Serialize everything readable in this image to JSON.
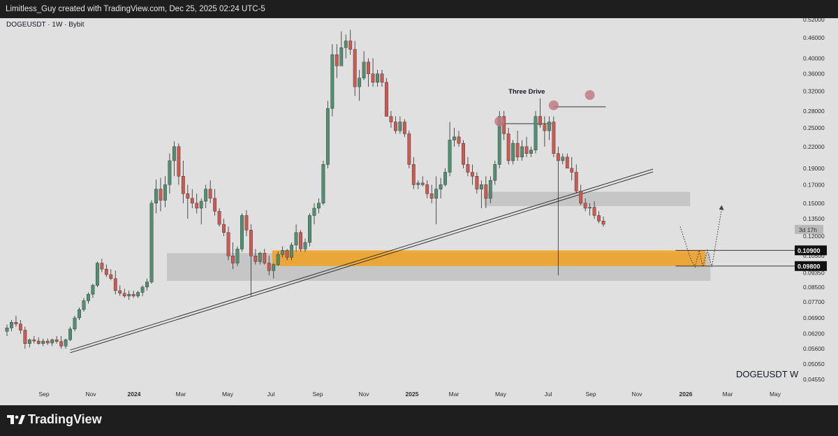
{
  "header": {
    "credit": "Limitless_Guy created with TradingView.com, Dec 25, 2025 02:24 UTC-5"
  },
  "chart": {
    "symbol_label": "DOGEUSDT · 1W · Bybit",
    "watermark": "DOGEUSDT   W",
    "countdown": "3d 17h",
    "annotation": "Three Drive",
    "price_tags": [
      "0.10900",
      "0.09800"
    ]
  },
  "footer": {
    "brand": "TradingView"
  },
  "colors": {
    "up": "#4f8f72",
    "down": "#d0584f",
    "zone": "#f0a020",
    "marker": "#c07a84"
  },
  "chart_data": {
    "type": "candlestick",
    "title": "DOGEUSDT · 1W · Bybit",
    "scale": "log",
    "y_ticks": [
      "0.52000",
      "0.46000",
      "0.40000",
      "0.36000",
      "0.32000",
      "0.28000",
      "0.25000",
      "0.22000",
      "0.19000",
      "0.17000",
      "0.15000",
      "0.13500",
      "0.12000",
      "0.10500",
      "0.09350",
      "0.08500",
      "0.07700",
      "0.06900",
      "0.06200",
      "0.05600",
      "0.05050",
      "0.04550"
    ],
    "x_ticks": [
      "Sep",
      "Nov",
      "2024",
      "Mar",
      "May",
      "Jul",
      "Sep",
      "Nov",
      "2025",
      "Mar",
      "May",
      "Jul",
      "Sep",
      "Nov",
      "2026",
      "Mar",
      "May"
    ],
    "ohlc_weekly": [
      [
        0.063,
        0.066,
        0.061,
        0.0645
      ],
      [
        0.0645,
        0.068,
        0.063,
        0.067
      ],
      [
        0.067,
        0.07,
        0.065,
        0.0662
      ],
      [
        0.0662,
        0.068,
        0.062,
        0.0635
      ],
      [
        0.0635,
        0.065,
        0.056,
        0.058
      ],
      [
        0.058,
        0.06,
        0.0565,
        0.0595
      ],
      [
        0.0595,
        0.061,
        0.058,
        0.059
      ],
      [
        0.059,
        0.0605,
        0.0575,
        0.058
      ],
      [
        0.058,
        0.06,
        0.057,
        0.059
      ],
      [
        0.059,
        0.06,
        0.0575,
        0.0582
      ],
      [
        0.0582,
        0.06,
        0.057,
        0.0595
      ],
      [
        0.0595,
        0.061,
        0.058,
        0.0588
      ],
      [
        0.0588,
        0.061,
        0.056,
        0.057
      ],
      [
        0.057,
        0.06,
        0.056,
        0.0595
      ],
      [
        0.0595,
        0.065,
        0.059,
        0.064
      ],
      [
        0.064,
        0.07,
        0.063,
        0.069
      ],
      [
        0.069,
        0.074,
        0.068,
        0.073
      ],
      [
        0.073,
        0.079,
        0.072,
        0.0775
      ],
      [
        0.0775,
        0.082,
        0.076,
        0.081
      ],
      [
        0.081,
        0.087,
        0.079,
        0.086
      ],
      [
        0.086,
        0.101,
        0.085,
        0.1
      ],
      [
        0.1,
        0.103,
        0.094,
        0.096
      ],
      [
        0.096,
        0.099,
        0.091,
        0.0925
      ],
      [
        0.0925,
        0.096,
        0.089,
        0.09
      ],
      [
        0.09,
        0.095,
        0.081,
        0.083
      ],
      [
        0.083,
        0.086,
        0.08,
        0.0815
      ],
      [
        0.0815,
        0.084,
        0.079,
        0.08
      ],
      [
        0.08,
        0.083,
        0.078,
        0.081
      ],
      [
        0.081,
        0.083,
        0.079,
        0.08
      ],
      [
        0.08,
        0.083,
        0.079,
        0.082
      ],
      [
        0.082,
        0.086,
        0.08,
        0.085
      ],
      [
        0.085,
        0.09,
        0.083,
        0.088
      ],
      [
        0.088,
        0.153,
        0.087,
        0.15
      ],
      [
        0.15,
        0.176,
        0.14,
        0.165
      ],
      [
        0.165,
        0.178,
        0.142,
        0.153
      ],
      [
        0.153,
        0.18,
        0.146,
        0.17
      ],
      [
        0.17,
        0.21,
        0.16,
        0.2
      ],
      [
        0.2,
        0.228,
        0.18,
        0.22
      ],
      [
        0.22,
        0.225,
        0.17,
        0.18
      ],
      [
        0.18,
        0.2,
        0.15,
        0.16
      ],
      [
        0.16,
        0.17,
        0.135,
        0.155
      ],
      [
        0.155,
        0.165,
        0.145,
        0.15
      ],
      [
        0.15,
        0.16,
        0.14,
        0.145
      ],
      [
        0.145,
        0.155,
        0.13,
        0.152
      ],
      [
        0.152,
        0.17,
        0.145,
        0.165
      ],
      [
        0.165,
        0.175,
        0.15,
        0.155
      ],
      [
        0.155,
        0.165,
        0.138,
        0.142
      ],
      [
        0.142,
        0.145,
        0.128,
        0.13
      ],
      [
        0.13,
        0.135,
        0.12,
        0.123
      ],
      [
        0.123,
        0.128,
        0.102,
        0.105
      ],
      [
        0.105,
        0.115,
        0.096,
        0.1
      ],
      [
        0.1,
        0.112,
        0.098,
        0.11
      ],
      [
        0.11,
        0.14,
        0.108,
        0.138
      ],
      [
        0.138,
        0.143,
        0.12,
        0.125
      ],
      [
        0.125,
        0.13,
        0.08,
        0.105
      ],
      [
        0.105,
        0.11,
        0.099,
        0.101
      ],
      [
        0.101,
        0.108,
        0.099,
        0.107
      ],
      [
        0.107,
        0.11,
        0.099,
        0.1
      ],
      [
        0.1,
        0.105,
        0.092,
        0.095
      ],
      [
        0.095,
        0.1,
        0.09,
        0.099
      ],
      [
        0.099,
        0.108,
        0.098,
        0.106
      ],
      [
        0.106,
        0.112,
        0.104,
        0.109
      ],
      [
        0.109,
        0.11,
        0.102,
        0.104
      ],
      [
        0.104,
        0.115,
        0.102,
        0.113
      ],
      [
        0.113,
        0.13,
        0.108,
        0.123
      ],
      [
        0.123,
        0.125,
        0.108,
        0.11
      ],
      [
        0.11,
        0.118,
        0.108,
        0.115
      ],
      [
        0.115,
        0.14,
        0.112,
        0.138
      ],
      [
        0.138,
        0.15,
        0.13,
        0.145
      ],
      [
        0.145,
        0.155,
        0.14,
        0.15
      ],
      [
        0.15,
        0.2,
        0.148,
        0.195
      ],
      [
        0.195,
        0.3,
        0.19,
        0.285
      ],
      [
        0.285,
        0.44,
        0.27,
        0.41
      ],
      [
        0.41,
        0.44,
        0.35,
        0.38
      ],
      [
        0.38,
        0.48,
        0.38,
        0.43
      ],
      [
        0.43,
        0.47,
        0.4,
        0.45
      ],
      [
        0.45,
        0.485,
        0.41,
        0.425
      ],
      [
        0.425,
        0.45,
        0.31,
        0.33
      ],
      [
        0.33,
        0.37,
        0.3,
        0.35
      ],
      [
        0.35,
        0.42,
        0.345,
        0.39
      ],
      [
        0.39,
        0.4,
        0.33,
        0.36
      ],
      [
        0.36,
        0.4,
        0.33,
        0.34
      ],
      [
        0.34,
        0.37,
        0.33,
        0.36
      ],
      [
        0.36,
        0.37,
        0.33,
        0.34
      ],
      [
        0.34,
        0.35,
        0.27,
        0.27
      ],
      [
        0.27,
        0.28,
        0.25,
        0.26
      ],
      [
        0.26,
        0.27,
        0.24,
        0.245
      ],
      [
        0.245,
        0.27,
        0.24,
        0.26
      ],
      [
        0.26,
        0.265,
        0.235,
        0.24
      ],
      [
        0.24,
        0.245,
        0.19,
        0.195
      ],
      [
        0.195,
        0.205,
        0.165,
        0.17
      ],
      [
        0.17,
        0.175,
        0.165,
        0.172
      ],
      [
        0.172,
        0.18,
        0.168,
        0.17
      ],
      [
        0.17,
        0.175,
        0.155,
        0.16
      ],
      [
        0.16,
        0.17,
        0.15,
        0.155
      ],
      [
        0.155,
        0.18,
        0.13,
        0.165
      ],
      [
        0.165,
        0.178,
        0.155,
        0.17
      ],
      [
        0.17,
        0.19,
        0.168,
        0.185
      ],
      [
        0.185,
        0.26,
        0.18,
        0.23
      ],
      [
        0.23,
        0.25,
        0.22,
        0.235
      ],
      [
        0.235,
        0.245,
        0.22,
        0.225
      ],
      [
        0.225,
        0.23,
        0.19,
        0.195
      ],
      [
        0.195,
        0.205,
        0.18,
        0.185
      ],
      [
        0.185,
        0.195,
        0.17,
        0.18
      ],
      [
        0.18,
        0.185,
        0.16,
        0.165
      ],
      [
        0.165,
        0.175,
        0.145,
        0.17
      ],
      [
        0.17,
        0.18,
        0.145,
        0.155
      ],
      [
        0.155,
        0.18,
        0.15,
        0.175
      ],
      [
        0.175,
        0.2,
        0.17,
        0.195
      ],
      [
        0.195,
        0.28,
        0.19,
        0.27
      ],
      [
        0.27,
        0.28,
        0.23,
        0.24
      ],
      [
        0.24,
        0.25,
        0.195,
        0.2
      ],
      [
        0.2,
        0.23,
        0.195,
        0.225
      ],
      [
        0.225,
        0.245,
        0.2,
        0.205
      ],
      [
        0.205,
        0.23,
        0.2,
        0.22
      ],
      [
        0.22,
        0.235,
        0.205,
        0.21
      ],
      [
        0.21,
        0.22,
        0.205,
        0.215
      ],
      [
        0.215,
        0.28,
        0.21,
        0.27
      ],
      [
        0.27,
        0.305,
        0.25,
        0.255
      ],
      [
        0.255,
        0.27,
        0.22,
        0.245
      ],
      [
        0.245,
        0.27,
        0.23,
        0.26
      ],
      [
        0.26,
        0.27,
        0.205,
        0.21
      ],
      [
        0.21,
        0.22,
        0.092,
        0.2
      ],
      [
        0.2,
        0.21,
        0.195,
        0.205
      ],
      [
        0.205,
        0.21,
        0.19,
        0.19
      ],
      [
        0.19,
        0.205,
        0.175,
        0.185
      ],
      [
        0.185,
        0.195,
        0.16,
        0.163
      ],
      [
        0.163,
        0.17,
        0.148,
        0.15
      ],
      [
        0.15,
        0.155,
        0.142,
        0.145
      ],
      [
        0.145,
        0.15,
        0.138,
        0.146
      ],
      [
        0.146,
        0.152,
        0.135,
        0.138
      ],
      [
        0.138,
        0.142,
        0.131,
        0.133
      ],
      [
        0.133,
        0.137,
        0.128,
        0.13
      ]
    ]
  }
}
